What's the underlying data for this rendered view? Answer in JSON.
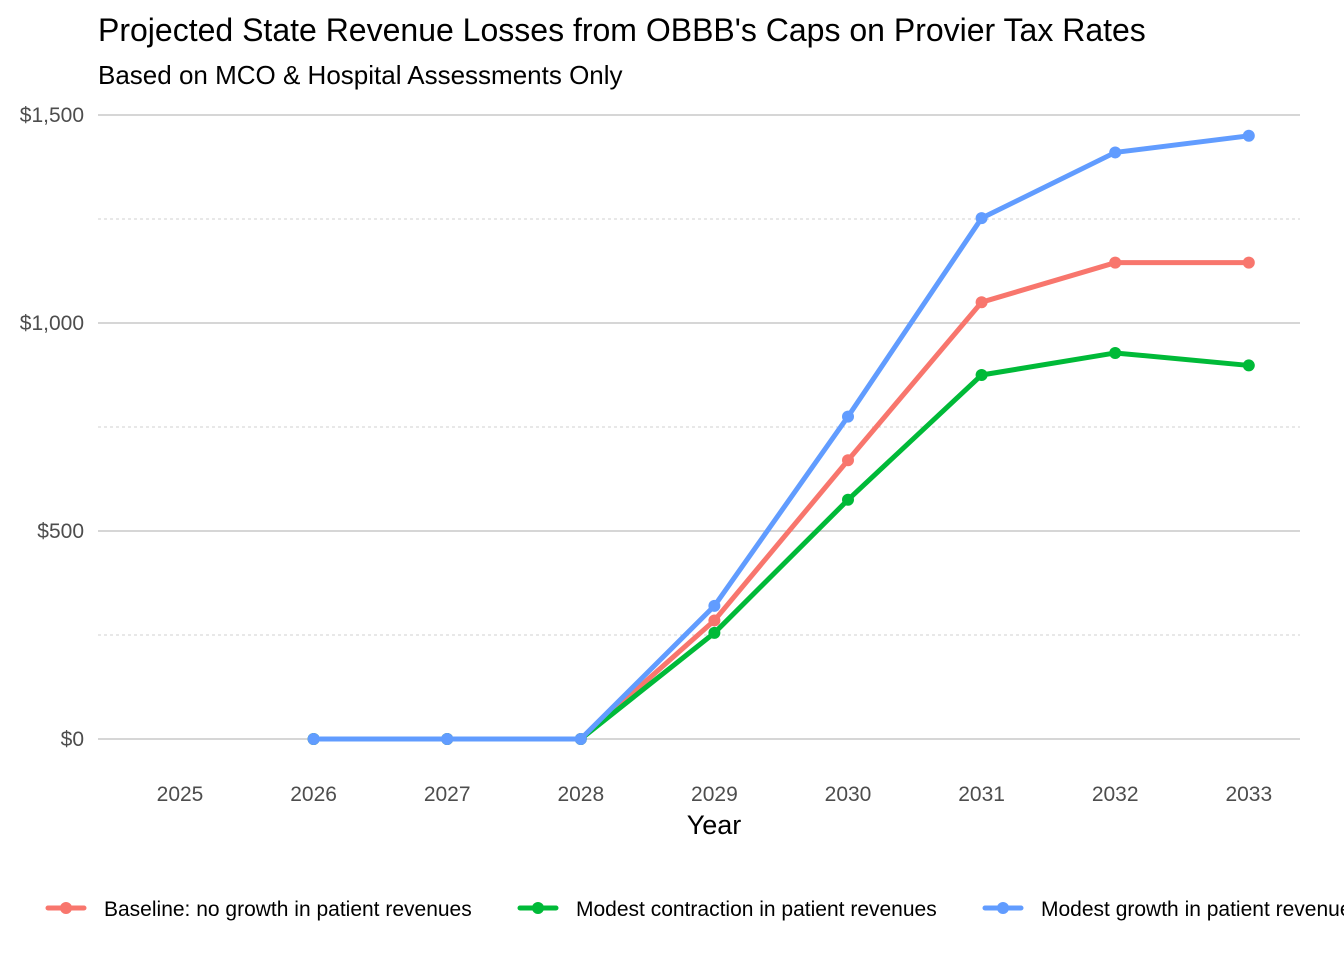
{
  "chart_data": {
    "type": "line",
    "title": "Projected State Revenue Losses from OBBB's Caps on Provier Tax Rates",
    "subtitle": "Based on MCO & Hospital Assessments Only",
    "xlabel": "Year",
    "ylabel": "",
    "x": [
      2025,
      2026,
      2027,
      2028,
      2029,
      2030,
      2031,
      2032,
      2033
    ],
    "x_tick_labels": [
      "2025",
      "2026",
      "2027",
      "2028",
      "2029",
      "2030",
      "2031",
      "2032",
      "2033"
    ],
    "xlim": [
      2024.4,
      2033.4
    ],
    "ylim": [
      -60,
      1560
    ],
    "y_ticks": [
      0,
      500,
      1000,
      1500
    ],
    "y_tick_labels": [
      "$0",
      "$500",
      "$1,000",
      "$1,500"
    ],
    "y_minor_ticks": [
      250,
      750,
      1250
    ],
    "grid": true,
    "legend_position": "bottom",
    "series": [
      {
        "name": "Baseline:  no growth in patient revenues",
        "color": "#f8766d",
        "values": [
          null,
          0,
          0,
          0,
          285,
          670,
          1050,
          1145,
          1145
        ]
      },
      {
        "name": "Modest contraction in patient revenues",
        "color": "#00ba38",
        "values": [
          null,
          0,
          0,
          0,
          255,
          575,
          875,
          928,
          898
        ]
      },
      {
        "name": "Modest growth in patient revenues",
        "color": "#619cff",
        "values": [
          null,
          0,
          0,
          0,
          320,
          775,
          1252,
          1410,
          1450
        ]
      }
    ]
  }
}
